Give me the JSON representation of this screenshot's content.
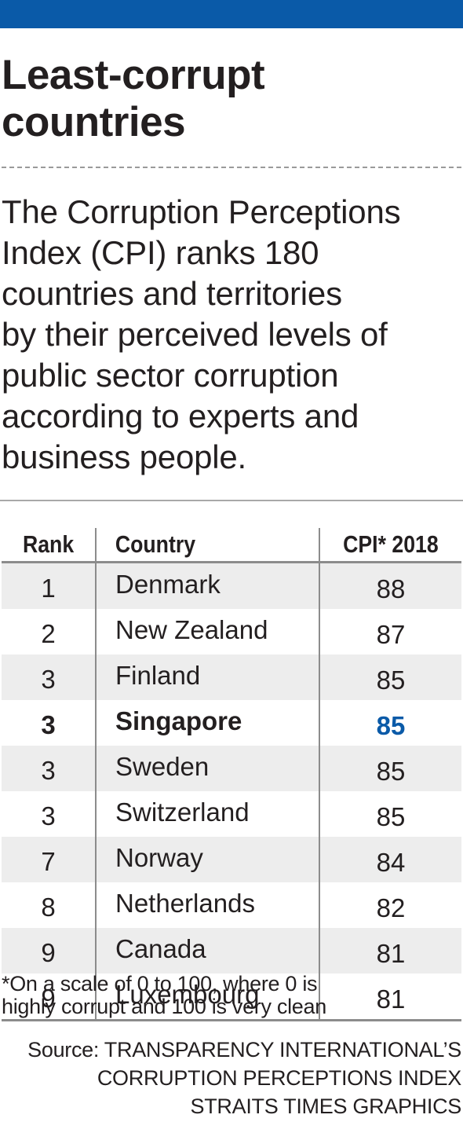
{
  "accent_color": "#0a5aa8",
  "title_line1": "Least-corrupt",
  "title_line2": "countries",
  "intro": [
    "The Corruption Perceptions",
    "Index (CPI) ranks 180",
    "countries and territories",
    "by their perceived levels of",
    "public sector corruption",
    "according to experts and",
    "business people."
  ],
  "chart_data": {
    "type": "table",
    "columns": [
      "Rank",
      "Country",
      "CPI* 2018"
    ],
    "rows": [
      {
        "rank": "1",
        "country": "Denmark",
        "cpi": "88"
      },
      {
        "rank": "2",
        "country": "New Zealand",
        "cpi": "87"
      },
      {
        "rank": "3",
        "country": "Finland",
        "cpi": "85"
      },
      {
        "rank": "3",
        "country": "Singapore",
        "cpi": "85",
        "highlighted": true
      },
      {
        "rank": "3",
        "country": "Sweden",
        "cpi": "85"
      },
      {
        "rank": "3",
        "country": "Switzerland",
        "cpi": "85"
      },
      {
        "rank": "7",
        "country": "Norway",
        "cpi": "84"
      },
      {
        "rank": "8",
        "country": "Netherlands",
        "cpi": "82"
      },
      {
        "rank": "9",
        "country": "Canada",
        "cpi": "81"
      },
      {
        "rank": "9",
        "country": "Luxembourg",
        "cpi": "81"
      }
    ]
  },
  "footnote": [
    "*On a scale of 0 to 100, where 0 is",
    "highly corrupt and 100 is very clean"
  ],
  "source": [
    "Source: TRANSPARENCY INTERNATIONAL’S",
    "CORRUPTION PERCEPTIONS INDEX",
    "STRAITS TIMES GRAPHICS"
  ]
}
